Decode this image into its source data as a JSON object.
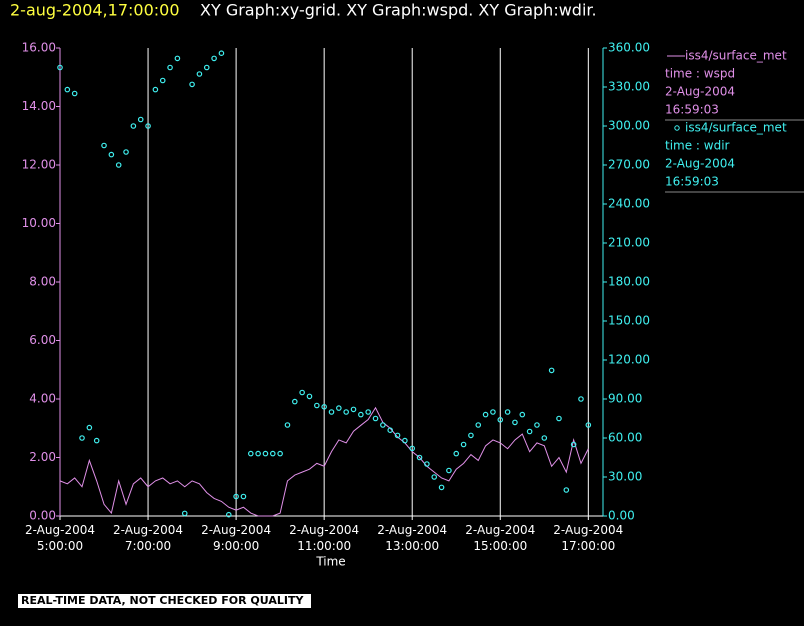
{
  "header": {
    "timestamp": "2-aug-2004,17:00:00",
    "graphs": "XY Graph:xy-grid.  XY Graph:wspd.  XY Graph:wdir."
  },
  "footer": "REAL-TIME DATA, NOT CHECKED FOR QUALITY",
  "chart_data": {
    "type": "line",
    "xlabel": "Time",
    "grid": true,
    "x": [
      "2004-08-02T05:00",
      "2004-08-02T05:10",
      "2004-08-02T05:20",
      "2004-08-02T05:30",
      "2004-08-02T05:40",
      "2004-08-02T05:50",
      "2004-08-02T06:00",
      "2004-08-02T06:10",
      "2004-08-02T06:20",
      "2004-08-02T06:30",
      "2004-08-02T06:40",
      "2004-08-02T06:50",
      "2004-08-02T07:00",
      "2004-08-02T07:10",
      "2004-08-02T07:20",
      "2004-08-02T07:30",
      "2004-08-02T07:40",
      "2004-08-02T07:50",
      "2004-08-02T08:00",
      "2004-08-02T08:10",
      "2004-08-02T08:20",
      "2004-08-02T08:30",
      "2004-08-02T08:40",
      "2004-08-02T08:50",
      "2004-08-02T09:00",
      "2004-08-02T09:10",
      "2004-08-02T09:20",
      "2004-08-02T09:30",
      "2004-08-02T09:40",
      "2004-08-02T09:50",
      "2004-08-02T10:00",
      "2004-08-02T10:10",
      "2004-08-02T10:20",
      "2004-08-02T10:30",
      "2004-08-02T10:40",
      "2004-08-02T10:50",
      "2004-08-02T11:00",
      "2004-08-02T11:10",
      "2004-08-02T11:20",
      "2004-08-02T11:30",
      "2004-08-02T11:40",
      "2004-08-02T11:50",
      "2004-08-02T12:00",
      "2004-08-02T12:10",
      "2004-08-02T12:20",
      "2004-08-02T12:30",
      "2004-08-02T12:40",
      "2004-08-02T12:50",
      "2004-08-02T13:00",
      "2004-08-02T13:10",
      "2004-08-02T13:20",
      "2004-08-02T13:30",
      "2004-08-02T13:40",
      "2004-08-02T13:50",
      "2004-08-02T14:00",
      "2004-08-02T14:10",
      "2004-08-02T14:20",
      "2004-08-02T14:30",
      "2004-08-02T14:40",
      "2004-08-02T14:50",
      "2004-08-02T15:00",
      "2004-08-02T15:10",
      "2004-08-02T15:20",
      "2004-08-02T15:30",
      "2004-08-02T15:40",
      "2004-08-02T15:50",
      "2004-08-02T16:00",
      "2004-08-02T16:10",
      "2004-08-02T16:20",
      "2004-08-02T16:30",
      "2004-08-02T16:40",
      "2004-08-02T16:50",
      "2004-08-02T17:00"
    ],
    "xlim": [
      "2004-08-02T05:00",
      "2004-08-02T17:20"
    ],
    "xticks": [
      {
        "value": "2004-08-02T05:00",
        "label": "2-Aug-2004\n5:00:00"
      },
      {
        "value": "2004-08-02T07:00",
        "label": "2-Aug-2004\n7:00:00"
      },
      {
        "value": "2004-08-02T09:00",
        "label": "2-Aug-2004\n9:00:00"
      },
      {
        "value": "2004-08-02T11:00",
        "label": "2-Aug-2004\n11:00:00"
      },
      {
        "value": "2004-08-02T13:00",
        "label": "2-Aug-2004\n13:00:00"
      },
      {
        "value": "2004-08-02T15:00",
        "label": "2-Aug-2004\n15:00:00"
      },
      {
        "value": "2004-08-02T17:00",
        "label": "2-Aug-2004\n17:00:00"
      }
    ],
    "ylim": [
      0,
      16
    ],
    "yticks": [
      {
        "value": 0,
        "label": "0.00"
      },
      {
        "value": 2,
        "label": "2.00"
      },
      {
        "value": 4,
        "label": "4.00"
      },
      {
        "value": 6,
        "label": "6.00"
      },
      {
        "value": 8,
        "label": "8.00"
      },
      {
        "value": 10,
        "label": "10.00"
      },
      {
        "value": 12,
        "label": "12.00"
      },
      {
        "value": 14,
        "label": "14.00"
      },
      {
        "value": 16,
        "label": "16.00"
      }
    ],
    "y2lim": [
      0,
      360
    ],
    "y2ticks": [
      {
        "value": 0,
        "label": "0.00"
      },
      {
        "value": 30,
        "label": "30.00"
      },
      {
        "value": 60,
        "label": "60.00"
      },
      {
        "value": 90,
        "label": "90.00"
      },
      {
        "value": 120,
        "label": "120.00"
      },
      {
        "value": 150,
        "label": "150.00"
      },
      {
        "value": 180,
        "label": "180.00"
      },
      {
        "value": 210,
        "label": "210.00"
      },
      {
        "value": 240,
        "label": "240.00"
      },
      {
        "value": 270,
        "label": "270.00"
      },
      {
        "value": 300,
        "label": "300.00"
      },
      {
        "value": 330,
        "label": "330.00"
      },
      {
        "value": 360,
        "label": "360.00"
      }
    ],
    "series": [
      {
        "name": "iss4/surface_met",
        "legend_text": [
          "time : wspd",
          "2-Aug-2004",
          "16:59:03"
        ],
        "color": "#e090e8",
        "type": "line",
        "values": [
          1.2,
          1.1,
          1.3,
          1.0,
          1.9,
          1.2,
          0.4,
          0.1,
          1.2,
          0.4,
          1.1,
          1.3,
          1.0,
          1.2,
          1.3,
          1.1,
          1.2,
          1.0,
          1.2,
          1.1,
          0.8,
          0.6,
          0.5,
          0.3,
          0.2,
          0.3,
          0.1,
          0.0,
          0.0,
          0.0,
          0.1,
          1.2,
          1.4,
          1.5,
          1.6,
          1.8,
          1.7,
          2.2,
          2.6,
          2.5,
          2.9,
          3.1,
          3.3,
          3.7,
          3.2,
          3.0,
          2.7,
          2.5,
          2.2,
          2.0,
          1.7,
          1.5,
          1.3,
          1.2,
          1.6,
          1.8,
          2.1,
          1.9,
          2.4,
          2.6,
          2.5,
          2.3,
          2.6,
          2.8,
          2.2,
          2.5,
          2.4,
          1.7,
          2.0,
          1.5,
          2.6,
          1.8,
          2.3
        ]
      },
      {
        "name": "iss4/surface_met",
        "legend_text": [
          "time : wdir",
          "2-Aug-2004",
          "16:59:03"
        ],
        "color": "#40f0f0",
        "type": "scatter",
        "axis": "y2",
        "values": [
          345,
          328,
          325,
          60,
          68,
          58,
          285,
          278,
          270,
          280,
          300,
          305,
          300,
          328,
          335,
          345,
          352,
          2,
          332,
          340,
          345,
          352,
          356,
          1,
          15,
          15,
          48,
          48,
          48,
          48,
          48,
          70,
          88,
          95,
          92,
          85,
          84,
          80,
          83,
          80,
          82,
          78,
          80,
          75,
          70,
          66,
          62,
          58,
          52,
          45,
          40,
          30,
          22,
          35,
          48,
          55,
          62,
          70,
          78,
          80,
          74,
          80,
          72,
          78,
          65,
          70,
          60,
          112,
          75,
          20,
          55,
          90,
          70
        ]
      }
    ]
  }
}
